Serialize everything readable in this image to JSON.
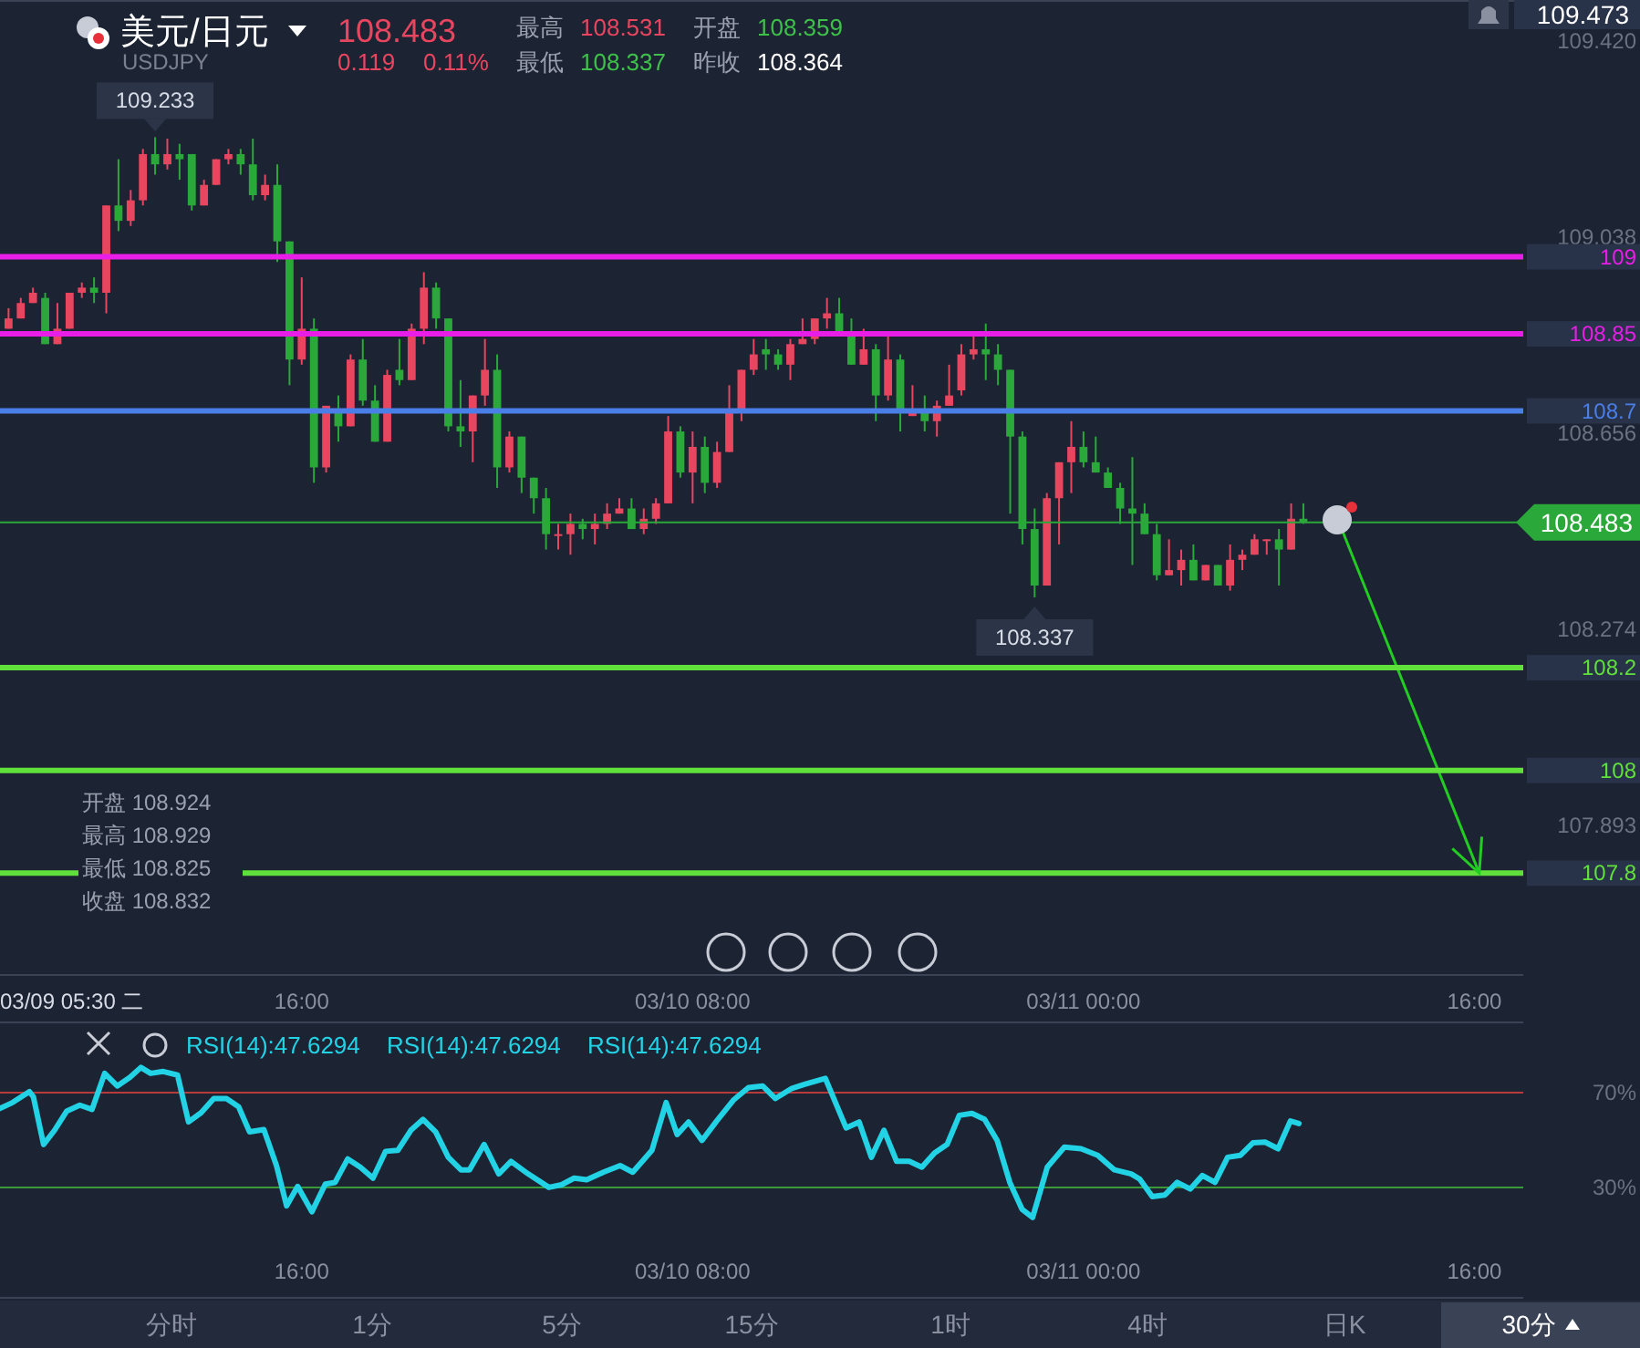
{
  "chart_data": [
    {
      "type": "candlestick",
      "title": "美元/日元",
      "subtitle": "USDJPY",
      "x": [
        "--03-09T04:00",
        "--03-09T04:30",
        "--03-09T05:00",
        "--03-09T05:30",
        "--03-09T06:00",
        "--03-09T06:30",
        "--03-09T07:00",
        "--03-09T07:30",
        "--03-09T08:00",
        "--03-09T08:30",
        "--03-09T09:00",
        "--03-09T09:30",
        "--03-09T10:00",
        "--03-09T10:30",
        "--03-09T11:00",
        "--03-09T11:30",
        "--03-09T12:00",
        "--03-09T12:30",
        "--03-09T13:00",
        "--03-09T13:30",
        "--03-09T14:00",
        "--03-09T14:30",
        "--03-09T15:00",
        "--03-09T15:30",
        "--03-09T16:00",
        "--03-09T16:30",
        "--03-09T17:00",
        "--03-09T17:30",
        "--03-09T18:00",
        "--03-09T18:30",
        "--03-09T19:00",
        "--03-09T19:30",
        "--03-09T20:00",
        "--03-09T20:30",
        "--03-09T21:00",
        "--03-09T21:30",
        "--03-09T22:00",
        "--03-09T22:30",
        "--03-09T23:00",
        "--03-09T23:30",
        "--03-10T00:00",
        "--03-10T00:30",
        "--03-10T01:00",
        "--03-10T01:30",
        "--03-10T02:00",
        "--03-10T02:30",
        "--03-10T03:00",
        "--03-10T03:30",
        "--03-10T04:00",
        "--03-10T04:30",
        "--03-10T05:00",
        "--03-10T05:30",
        "--03-10T06:00",
        "--03-10T06:30",
        "--03-10T07:00",
        "--03-10T07:30",
        "--03-10T08:00",
        "--03-10T08:30",
        "--03-10T09:00",
        "--03-10T09:30",
        "--03-10T10:00",
        "--03-10T10:30",
        "--03-10T11:00",
        "--03-10T11:30",
        "--03-10T12:00",
        "--03-10T12:30",
        "--03-10T13:00",
        "--03-10T13:30",
        "--03-10T14:00",
        "--03-10T14:30",
        "--03-10T15:00",
        "--03-10T15:30",
        "--03-10T16:00",
        "--03-10T16:30",
        "--03-10T17:00",
        "--03-10T17:30",
        "--03-10T18:00",
        "--03-10T18:30",
        "--03-10T19:00",
        "--03-10T19:30",
        "--03-10T20:00",
        "--03-10T20:30",
        "--03-10T21:00",
        "--03-10T21:30",
        "--03-10T22:00",
        "--03-10T22:30",
        "--03-10T23:00",
        "--03-10T23:30",
        "--03-11T00:00",
        "--03-11T00:30",
        "--03-11T01:00",
        "--03-11T01:30",
        "--03-11T02:00",
        "--03-11T02:30",
        "--03-11T03:00",
        "--03-11T03:30",
        "--03-11T04:00",
        "--03-11T04:30",
        "--03-11T05:00",
        "--03-11T05:30",
        "--03-11T06:00",
        "--03-11T06:30",
        "--03-11T07:00",
        "--03-11T07:30",
        "--03-11T08:00",
        "--03-11T08:30",
        "--03-11T09:00"
      ],
      "ohlc": [
        [
          108.86,
          108.9,
          108.86,
          108.88
        ],
        [
          108.88,
          108.92,
          108.88,
          108.91
        ],
        [
          108.91,
          108.94,
          108.91,
          108.93
        ],
        [
          108.92,
          108.93,
          108.83,
          108.83
        ],
        [
          108.83,
          108.91,
          108.83,
          108.86
        ],
        [
          108.86,
          108.93,
          108.86,
          108.93
        ],
        [
          108.93,
          108.95,
          108.92,
          108.94
        ],
        [
          108.94,
          108.96,
          108.91,
          108.93
        ],
        [
          108.93,
          109.1,
          108.89,
          109.1
        ],
        [
          109.1,
          109.19,
          109.05,
          109.07
        ],
        [
          109.07,
          109.13,
          109.06,
          109.11
        ],
        [
          109.11,
          109.21,
          109.1,
          109.2
        ],
        [
          109.2,
          109.233,
          109.16,
          109.18
        ],
        [
          109.18,
          109.23,
          109.17,
          109.2
        ],
        [
          109.2,
          109.22,
          109.15,
          109.19
        ],
        [
          109.2,
          109.2,
          109.09,
          109.1
        ],
        [
          109.1,
          109.15,
          109.1,
          109.14
        ],
        [
          109.14,
          109.19,
          109.14,
          109.19
        ],
        [
          109.19,
          109.21,
          109.18,
          109.2
        ],
        [
          109.2,
          109.21,
          109.16,
          109.18
        ],
        [
          109.18,
          109.23,
          109.11,
          109.12
        ],
        [
          109.12,
          109.16,
          109.11,
          109.14
        ],
        [
          109.14,
          109.18,
          108.99,
          109.03
        ],
        [
          109.03,
          109.03,
          108.75,
          108.8
        ],
        [
          108.8,
          108.96,
          108.79,
          108.86
        ],
        [
          108.86,
          108.88,
          108.56,
          108.59
        ],
        [
          108.59,
          108.71,
          108.58,
          108.71
        ],
        [
          108.7,
          108.73,
          108.64,
          108.67
        ],
        [
          108.67,
          108.81,
          108.67,
          108.8
        ],
        [
          108.8,
          108.84,
          108.71,
          108.72
        ],
        [
          108.72,
          108.75,
          108.64,
          108.64
        ],
        [
          108.64,
          108.78,
          108.64,
          108.77
        ],
        [
          108.78,
          108.84,
          108.75,
          108.76
        ],
        [
          108.76,
          108.87,
          108.76,
          108.86
        ],
        [
          108.86,
          108.97,
          108.83,
          108.94
        ],
        [
          108.94,
          108.95,
          108.86,
          108.88
        ],
        [
          108.88,
          108.88,
          108.66,
          108.67
        ],
        [
          108.67,
          108.76,
          108.63,
          108.66
        ],
        [
          108.66,
          108.73,
          108.6,
          108.73
        ],
        [
          108.73,
          108.84,
          108.71,
          108.78
        ],
        [
          108.78,
          108.81,
          108.55,
          108.59
        ],
        [
          108.59,
          108.66,
          108.58,
          108.65
        ],
        [
          108.65,
          108.65,
          108.54,
          108.57
        ],
        [
          108.57,
          108.57,
          108.5,
          108.53
        ],
        [
          108.53,
          108.55,
          108.43,
          108.46
        ],
        [
          108.46,
          108.48,
          108.43,
          108.46
        ],
        [
          108.46,
          108.5,
          108.42,
          108.48
        ],
        [
          108.48,
          108.49,
          108.45,
          108.47
        ],
        [
          108.47,
          108.5,
          108.44,
          108.48
        ],
        [
          108.48,
          108.52,
          108.47,
          108.5
        ],
        [
          108.5,
          108.53,
          108.5,
          108.51
        ],
        [
          108.51,
          108.53,
          108.47,
          108.47
        ],
        [
          108.47,
          108.51,
          108.46,
          108.49
        ],
        [
          108.49,
          108.53,
          108.48,
          108.52
        ],
        [
          108.52,
          108.69,
          108.52,
          108.66
        ],
        [
          108.66,
          108.67,
          108.57,
          108.58
        ],
        [
          108.58,
          108.66,
          108.52,
          108.63
        ],
        [
          108.63,
          108.65,
          108.54,
          108.56
        ],
        [
          108.56,
          108.64,
          108.55,
          108.62
        ],
        [
          108.62,
          108.75,
          108.62,
          108.7
        ],
        [
          108.7,
          108.78,
          108.68,
          108.78
        ],
        [
          108.78,
          108.84,
          108.77,
          108.81
        ],
        [
          108.82,
          108.84,
          108.78,
          108.81
        ],
        [
          108.81,
          108.82,
          108.78,
          108.79
        ],
        [
          108.79,
          108.84,
          108.76,
          108.83
        ],
        [
          108.83,
          108.88,
          108.83,
          108.84
        ],
        [
          108.84,
          108.88,
          108.83,
          108.88
        ],
        [
          108.88,
          108.92,
          108.86,
          108.89
        ],
        [
          108.89,
          108.92,
          108.85,
          108.85
        ],
        [
          108.85,
          108.88,
          108.79,
          108.79
        ],
        [
          108.79,
          108.86,
          108.79,
          108.82
        ],
        [
          108.82,
          108.83,
          108.68,
          108.73
        ],
        [
          108.73,
          108.85,
          108.72,
          108.8
        ],
        [
          108.8,
          108.81,
          108.66,
          108.7
        ],
        [
          108.69,
          108.75,
          108.69,
          108.7
        ],
        [
          108.7,
          108.73,
          108.66,
          108.68
        ],
        [
          108.68,
          108.72,
          108.65,
          108.71
        ],
        [
          108.71,
          108.79,
          108.71,
          108.73
        ],
        [
          108.74,
          108.83,
          108.73,
          108.81
        ],
        [
          108.81,
          108.85,
          108.8,
          108.82
        ],
        [
          108.82,
          108.87,
          108.76,
          108.81
        ],
        [
          108.81,
          108.83,
          108.75,
          108.78
        ],
        [
          108.78,
          108.78,
          108.5,
          108.65
        ],
        [
          108.65,
          108.66,
          108.44,
          108.47
        ],
        [
          108.47,
          108.51,
          108.337,
          108.36
        ],
        [
          108.36,
          108.54,
          108.36,
          108.53
        ],
        [
          108.53,
          108.6,
          108.44,
          108.6
        ],
        [
          108.6,
          108.68,
          108.54,
          108.63
        ],
        [
          108.63,
          108.66,
          108.59,
          108.6
        ],
        [
          108.6,
          108.65,
          108.58,
          108.58
        ],
        [
          108.58,
          108.59,
          108.55,
          108.55
        ],
        [
          108.55,
          108.56,
          108.48,
          108.51
        ],
        [
          108.51,
          108.61,
          108.4,
          108.5
        ],
        [
          108.5,
          108.52,
          108.46,
          108.46
        ],
        [
          108.46,
          108.48,
          108.37,
          108.38
        ],
        [
          108.38,
          108.45,
          108.38,
          108.39
        ],
        [
          108.39,
          108.43,
          108.36,
          108.41
        ],
        [
          108.41,
          108.44,
          108.37,
          108.37
        ],
        [
          108.37,
          108.4,
          108.37,
          108.4
        ],
        [
          108.4,
          108.4,
          108.36,
          108.36
        ],
        [
          108.36,
          108.44,
          108.35,
          108.41
        ],
        [
          108.41,
          108.43,
          108.39,
          108.42
        ],
        [
          108.42,
          108.46,
          108.42,
          108.45
        ],
        [
          108.45,
          108.45,
          108.42,
          108.45
        ],
        [
          108.45,
          108.47,
          108.36,
          108.43
        ],
        [
          108.43,
          108.52,
          108.43,
          108.49
        ],
        [
          108.49,
          108.52,
          108.48,
          108.483
        ]
      ],
      "series": [
        {
          "type": "line",
          "color": "#22cc22",
          "x": [
            "--03-11T10:24",
            "--03-11T16:12"
          ],
          "values": [
            108.49,
            107.8
          ]
        }
      ],
      "xlim": [
        "--03-09T03:39",
        "--03-11T18:00"
      ],
      "ylim": [
        107.6,
        109.5
      ],
      "xticks": [
        {
          "value": "--03-09T16:00",
          "label": "16:00"
        },
        {
          "value": "--03-10T08:00",
          "label": "03/10 08:00"
        },
        {
          "value": "--03-11T00:00",
          "label": "03/11 00:00"
        },
        {
          "value": "--03-11T16:00",
          "label": "16:00"
        }
      ],
      "yticks": [
        {
          "value": 109.42,
          "label": "109.420"
        },
        {
          "value": 109.038,
          "label": "109.038"
        },
        {
          "value": 108.656,
          "label": "108.656"
        },
        {
          "value": 108.274,
          "label": "108.274"
        },
        {
          "value": 107.893,
          "label": "107.893"
        }
      ],
      "ref_lines": [
        {
          "axis": "y",
          "value": 109,
          "label": "109",
          "color": "#e81ee8"
        },
        {
          "axis": "y",
          "value": 108.85,
          "label": "108.85",
          "color": "#e81ee8"
        },
        {
          "axis": "y",
          "value": 108.7,
          "label": "108.7",
          "color": "#4a7fe8"
        },
        {
          "axis": "y",
          "value": 108.2,
          "label": "108.2",
          "color": "#5fe03a"
        },
        {
          "axis": "y",
          "value": 108,
          "label": "108",
          "color": "#5fe03a"
        },
        {
          "axis": "y",
          "value": 107.8,
          "label": "107.8",
          "color": "#5fe03a"
        },
        {
          "axis": "y",
          "value": 108.483,
          "label": "108.483",
          "color": "#2aa83a"
        }
      ],
      "annotations": [
        "108.483",
        "0.119",
        "0.11%",
        "最高",
        "108.531",
        "开盘",
        "108.359",
        "最低",
        "108.337",
        "昨收",
        "108.364",
        {
          "text": "109.233",
          "x": "--03-09T10:00",
          "y": 109.233
        },
        {
          "text": "108.337",
          "x": "--03-10T22:00",
          "y": 108.337
        },
        "开盘 108.924",
        "最高 108.929",
        "最低 108.825",
        "收盘 108.832",
        "03/09 05:30 二",
        "109.473",
        "分时",
        "1分",
        "5分",
        "15分",
        "1时",
        "4时",
        "日K",
        "30分"
      ]
    },
    {
      "type": "line",
      "series": [
        {
          "color": "#22d3e6",
          "x": [
            "--03-09T03:39",
            "--03-09T04:10",
            "--03-09T04:51",
            "--03-09T05:01",
            "--03-09T05:26",
            "--03-09T05:53",
            "--03-09T06:23",
            "--03-09T06:55",
            "--03-09T07:25",
            "--03-09T07:56",
            "--03-09T08:27",
            "--03-09T08:58",
            "--03-09T09:25",
            "--03-09T09:49",
            "--03-09T10:20",
            "--03-09T10:55",
            "--03-09T11:22",
            "--03-09T11:53",
            "--03-09T12:24",
            "--03-09T12:55",
            "--03-09T13:25",
            "--03-09T13:52",
            "--03-09T14:27",
            "--03-09T14:58",
            "--03-09T15:23",
            "--03-09T15:50",
            "--03-09T16:25",
            "--03-09T16:58",
            "--03-09T17:22",
            "--03-09T17:53",
            "--03-09T18:24",
            "--03-09T18:55",
            "--03-09T19:26",
            "--03-09T19:56",
            "--03-09T20:28",
            "--03-09T20:58",
            "--03-09T21:29",
            "--03-09T22:00",
            "--03-09T22:31",
            "--03-09T22:52",
            "--03-09T23:28",
            "--03-10T00:04",
            "--03-10T00:34",
            "--03-10T01:16",
            "--03-10T02:07",
            "--03-10T02:38",
            "--03-10T03:09",
            "--03-10T03:40",
            "--03-10T04:21",
            "--03-10T05:02",
            "--03-10T05:33",
            "--03-10T06:20",
            "--03-10T06:55",
            "--03-10T07:22",
            "--03-10T07:50",
            "--03-10T08:23",
            "--03-10T08:59",
            "--03-10T09:40",
            "--03-10T10:17",
            "--03-10T10:52",
            "--03-10T11:23",
            "--03-10T12:04",
            "--03-10T12:35",
            "--03-10T13:26",
            "--03-10T14:17",
            "--03-10T14:49",
            "--03-10T15:19",
            "--03-10T15:50",
            "--03-10T16:21",
            "--03-10T16:52",
            "--03-10T17:23",
            "--03-10T17:54",
            "--03-10T18:25",
            "--03-10T18:55",
            "--03-10T19:26",
            "--03-10T19:57",
            "--03-10T20:28",
            "--03-10T20:59",
            "--03-10T21:29",
            "--03-10T21:55",
            "--03-10T22:31",
            "--03-10T23:13",
            "--03-10T23:54",
            "--03-11T00:35",
            "--03-11T01:16",
            "--03-11T01:57",
            "--03-11T02:18",
            "--03-11T02:49",
            "--03-11T03:20",
            "--03-11T03:50",
            "--03-11T04:22",
            "--03-11T04:52",
            "--03-11T05:23",
            "--03-11T05:54",
            "--03-11T06:25",
            "--03-11T06:56",
            "--03-11T07:26",
            "--03-11T07:58",
            "--03-11T08:28",
            "--03-11T08:49"
          ],
          "values": [
            63.3,
            65.8,
            70.4,
            68.2,
            48.1,
            54.1,
            62.2,
            64.7,
            62.9,
            78.1,
            72.8,
            76.4,
            80.6,
            78.1,
            78.9,
            77.4,
            57.6,
            61.5,
            67.5,
            67.5,
            64,
            53.4,
            54.4,
            39.2,
            22.2,
            30.4,
            19.7,
            31.4,
            32.1,
            42,
            38.5,
            33.9,
            45.2,
            45.6,
            54.1,
            58.7,
            53.4,
            42.7,
            37.4,
            37.4,
            48.1,
            35.7,
            41,
            35.7,
            30,
            31.1,
            33.9,
            33.2,
            36.4,
            39.2,
            36.4,
            45.6,
            65.8,
            52.3,
            57.6,
            49.8,
            58,
            66.8,
            72.1,
            72.8,
            67.5,
            71.8,
            73.5,
            76,
            55.1,
            57.6,
            42.7,
            54.1,
            41,
            41,
            38.5,
            44.5,
            48.1,
            60.4,
            61.2,
            58.7,
            49.8,
            32.1,
            20.8,
            17.3,
            38.5,
            47,
            46.3,
            43.5,
            37.4,
            35.7,
            33.5,
            26.1,
            26.8,
            32.1,
            29.3,
            35,
            32.1,
            42.7,
            43.5,
            48.8,
            49.1,
            46.3,
            58,
            56.9
          ]
        }
      ],
      "xlim": [
        "--03-09T03:39",
        "--03-11T18:00"
      ],
      "ylim": [
        -17,
        100
      ],
      "xticks": [
        {
          "value": "--03-09T16:00",
          "label": "16:00"
        },
        {
          "value": "--03-10T08:00",
          "label": "03/10 08:00"
        },
        {
          "value": "--03-11T00:00",
          "label": "03/11 00:00"
        },
        {
          "value": "--03-11T16:00",
          "label": "16:00"
        }
      ],
      "yticks": [
        {
          "value": 70,
          "label": "70%"
        },
        {
          "value": 30,
          "label": "30%"
        }
      ],
      "ref_lines": [
        {
          "axis": "y",
          "value": 70,
          "color": "#b83a3a"
        },
        {
          "axis": "y",
          "value": 30,
          "color": "#3a9a3a"
        }
      ],
      "annotations": [
        "RSI(14):47.6294",
        "RSI(14):47.6294",
        "RSI(14):47.6294"
      ]
    }
  ]
}
